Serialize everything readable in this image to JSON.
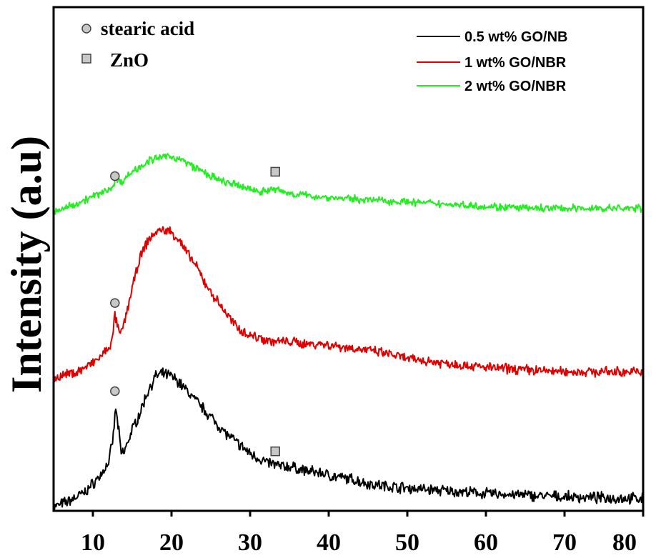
{
  "chart_data": {
    "type": "line",
    "title": "",
    "xlabel": "",
    "ylabel": "Intensity (a.u)",
    "xlim": [
      5,
      80
    ],
    "xticks": [
      10,
      20,
      30,
      40,
      50,
      60,
      70,
      80
    ],
    "ylim": [
      0,
      100
    ],
    "grid": false,
    "legend_position": "top-right",
    "series": [
      {
        "name": "0.5 wt% GO/NB",
        "color": "#000000",
        "x": [
          5,
          7,
          9,
          10,
          11,
          12,
          12.5,
          12.9,
          13.2,
          13.6,
          14,
          15,
          16,
          17,
          18,
          19,
          20,
          21,
          22,
          23,
          24,
          25,
          26,
          27,
          28,
          29,
          30,
          31,
          32,
          33,
          34,
          35,
          37,
          39,
          41,
          43,
          45,
          47,
          50,
          55,
          60,
          65,
          70,
          75,
          80
        ],
        "y": [
          0,
          1.5,
          3.5,
          5.5,
          7.5,
          10.5,
          15,
          23,
          19,
          12.5,
          13,
          18,
          22,
          27,
          30.5,
          31,
          30.5,
          29,
          27,
          25,
          23,
          21,
          19,
          17,
          15.5,
          14,
          12.5,
          11.5,
          10.5,
          10,
          9.5,
          9.5,
          8.5,
          8,
          7,
          6.5,
          5.5,
          5,
          4.5,
          3.8,
          3.2,
          2.8,
          2.4,
          2.2,
          2
        ]
      },
      {
        "name": "1 wt% GO/NBR",
        "color": "#e00000",
        "x": [
          5,
          8,
          10,
          11,
          12,
          12.5,
          12.8,
          13.1,
          13.5,
          14,
          15,
          16,
          17,
          18,
          19,
          20,
          21,
          22,
          23,
          24,
          25,
          26,
          27,
          28,
          29,
          30,
          31,
          32,
          33,
          34,
          35,
          37,
          39,
          41,
          43,
          45,
          48,
          50,
          55,
          60,
          65,
          70,
          75,
          80
        ],
        "y": [
          30,
          31.5,
          33.5,
          35,
          37,
          39,
          45,
          42,
          40,
          43,
          51,
          58,
          62,
          64,
          64.5,
          64,
          62,
          59,
          56.5,
          53,
          50,
          47.5,
          45,
          42.5,
          41,
          40,
          39.5,
          39,
          38.5,
          38.5,
          38.5,
          38,
          38,
          37.5,
          37,
          36.5,
          35.5,
          34.5,
          33.5,
          32.5,
          32,
          31.5,
          31.5,
          31.5
        ]
      },
      {
        "name": "2 wt% GO/NBR",
        "color": "#22ee22",
        "x": [
          5,
          7,
          9,
          11,
          12.5,
          13,
          13.5,
          15,
          17,
          19,
          20,
          21,
          22,
          23,
          24,
          25,
          26,
          27,
          28,
          29,
          30,
          31,
          32,
          33,
          34,
          35,
          37,
          40,
          45,
          50,
          55,
          60,
          65,
          70,
          75,
          80
        ],
        "y": [
          68.5,
          70,
          71.5,
          73,
          74.5,
          76.5,
          75.5,
          78,
          80.5,
          81.5,
          81.5,
          81,
          80,
          79,
          78,
          77,
          76,
          75.5,
          75,
          74.5,
          74,
          73.5,
          73.5,
          74,
          73.5,
          73,
          72.5,
          72,
          71.5,
          71,
          70.5,
          70,
          69.5,
          69.5,
          69.5,
          69.5
        ]
      }
    ],
    "markers": {
      "stearic_acid": {
        "label": "stearic acid",
        "x": 12.8,
        "y": [
          27,
          47.5,
          77
        ]
      },
      "zno": {
        "label": "ZnO",
        "x": 33.2,
        "y": [
          13,
          78
        ]
      }
    }
  },
  "colors": {
    "marker_circle_fill": "#c8c8c8",
    "marker_square_fill": "#c8c8c8",
    "marker_stroke": "#444444"
  }
}
